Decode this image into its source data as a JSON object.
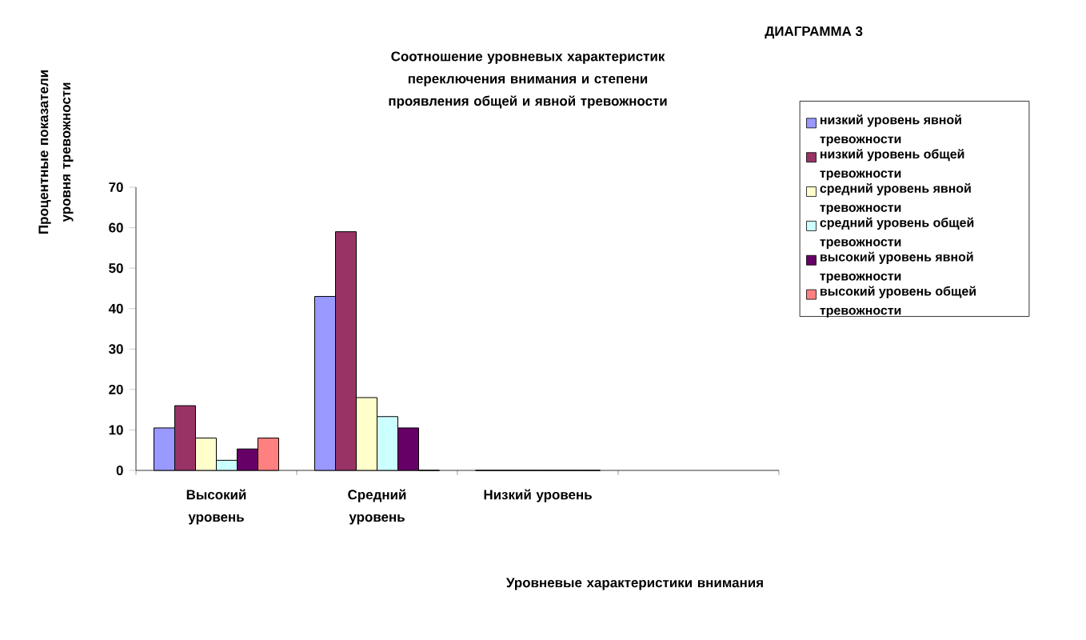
{
  "chart_data": {
    "type": "bar",
    "title": "Соотношение уровневых характеристик переключения внимания и степени проявления общей и явной тревожности",
    "annotations": [
      "ДИАГРАММА 3"
    ],
    "xlabel": "Уровневые характеристики внимания",
    "ylabel": "Процентные показатели уровня тревожности",
    "categories": [
      "Высокий уровень",
      "Средний уровень",
      "Низкий уровень",
      null
    ],
    "series": [
      {
        "name": "низкий уровень явной тревожности",
        "color": "#9999ff",
        "values": [
          10.5,
          43,
          0,
          null
        ]
      },
      {
        "name": "низкий уровень общей тревожности",
        "color": "#993366",
        "values": [
          16,
          59,
          0,
          null
        ]
      },
      {
        "name": "средний уровень явной тревожности",
        "color": "#ffffcc",
        "values": [
          8,
          18,
          0,
          null
        ]
      },
      {
        "name": "средний уровень общей тревожности",
        "color": "#ccffff",
        "values": [
          2.5,
          13.3,
          0,
          null
        ]
      },
      {
        "name": "высокий уровень явной тревожности",
        "color": "#660066",
        "values": [
          5.3,
          10.5,
          0,
          null
        ]
      },
      {
        "name": "высокий уровень общей тревожности",
        "color": "#ff8080",
        "values": [
          8,
          0,
          0,
          null
        ]
      }
    ],
    "ylim": [
      0,
      70
    ],
    "yticks": [
      0,
      10,
      20,
      30,
      40,
      50,
      60,
      70
    ],
    "grid": false,
    "legend": "right"
  }
}
